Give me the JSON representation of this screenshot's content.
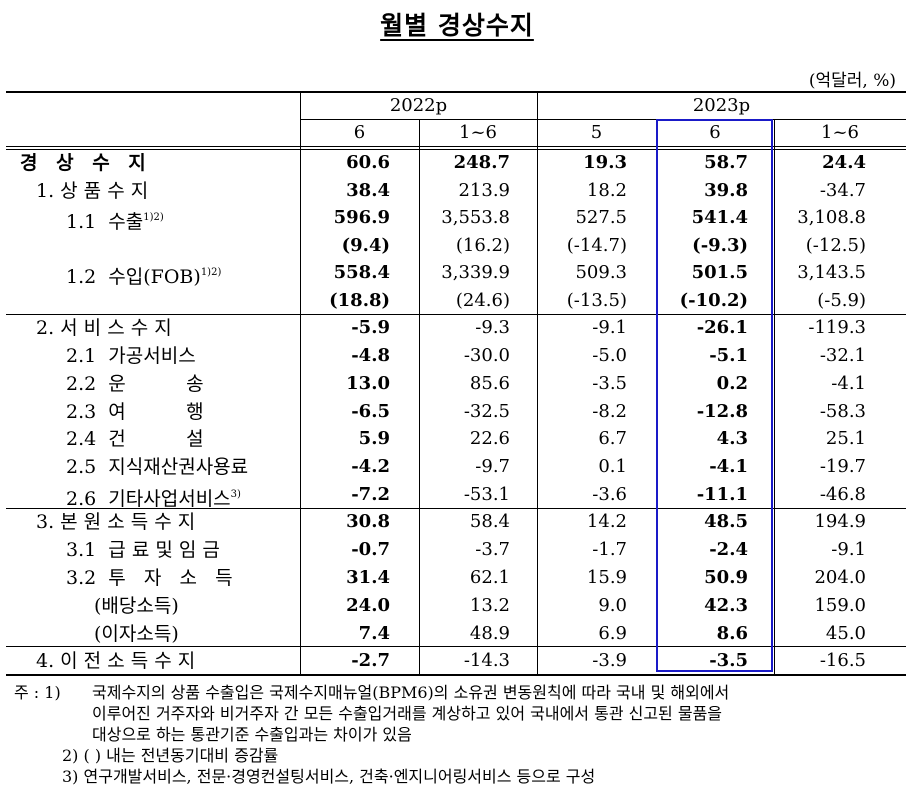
{
  "title": "월별 경상수지",
  "unit": "(억달러, %)",
  "header": {
    "year_2022": "2022p",
    "year_2023": "2023p",
    "cols": [
      "6",
      "1~6",
      "5",
      "6",
      "1~6"
    ]
  },
  "rows": [
    {
      "label": "경 상 수 지",
      "values": [
        "60.6",
        "248.7",
        "19.3",
        "58.7",
        "24.4"
      ]
    },
    {
      "label": "1. 상 품 수 지",
      "values": [
        "38.4",
        "213.9",
        "18.2",
        "39.8",
        "-34.7"
      ]
    },
    {
      "label": "1.1  수출",
      "sup": "1)2)",
      "values": [
        "596.9",
        "3,553.8",
        "527.5",
        "541.4",
        "3,108.8"
      ]
    },
    {
      "label": "",
      "values": [
        "(9.4)",
        "(16.2)",
        "(-14.7)",
        "(-9.3)",
        "(-12.5)"
      ]
    },
    {
      "label": "1.2  수입(FOB)",
      "sup": "1)2)",
      "values": [
        "558.4",
        "3,339.9",
        "509.3",
        "501.5",
        "3,143.5"
      ]
    },
    {
      "label": "",
      "values": [
        "(18.8)",
        "(24.6)",
        "(-13.5)",
        "(-10.2)",
        "(-5.9)"
      ]
    },
    {
      "label": "2. 서 비 스 수 지",
      "values": [
        "-5.9",
        "-9.3",
        "-9.1",
        "-26.1",
        "-119.3"
      ]
    },
    {
      "label": "2.1  가공서비스",
      "values": [
        "-4.8",
        "-30.0",
        "-5.0",
        "-5.1",
        "-32.1"
      ]
    },
    {
      "label": "2.2  운          송",
      "values": [
        "13.0",
        "85.6",
        "-3.5",
        "0.2",
        "-4.1"
      ]
    },
    {
      "label": "2.3  여          행",
      "values": [
        "-6.5",
        "-32.5",
        "-8.2",
        "-12.8",
        "-58.3"
      ]
    },
    {
      "label": "2.4  건          설",
      "values": [
        "5.9",
        "22.6",
        "6.7",
        "4.3",
        "25.1"
      ]
    },
    {
      "label": "2.5  지식재산권사용료",
      "values": [
        "-4.2",
        "-9.7",
        "0.1",
        "-4.1",
        "-19.7"
      ]
    },
    {
      "label": "2.6  기타사업서비스",
      "sup": "3)",
      "values": [
        "-7.2",
        "-53.1",
        "-3.6",
        "-11.1",
        "-46.8"
      ]
    },
    {
      "label": "3. 본 원 소 득 수 지",
      "values": [
        "30.8",
        "58.4",
        "14.2",
        "48.5",
        "194.9"
      ]
    },
    {
      "label": "3.1  급 료 및 임 금",
      "values": [
        "-0.7",
        "-3.7",
        "-1.7",
        "-2.4",
        "-9.1"
      ]
    },
    {
      "label": "3.2  투   자   소   득",
      "values": [
        "31.4",
        "62.1",
        "15.9",
        "50.9",
        "204.0"
      ]
    },
    {
      "label": "(배당소득)",
      "values": [
        "24.0",
        "13.2",
        "9.0",
        "42.3",
        "159.0"
      ]
    },
    {
      "label": "(이자소득)",
      "values": [
        "7.4",
        "48.9",
        "6.9",
        "8.6",
        "45.0"
      ]
    },
    {
      "label": "4. 이 전 소 득 수 지",
      "values": [
        "-2.7",
        "-14.3",
        "-3.9",
        "-3.5",
        "-16.5"
      ]
    }
  ],
  "notes": {
    "prefix": "주 : 1)",
    "n1_line1": "국제수지의 상품 수출입은 국제수지매뉴얼(BPM6)의 소유권 변동원칙에 따라 국내 및 해외에서",
    "n1_line2": "이루어진 거주자와 비거주자 간 모든 수출입거래를 계상하고 있어 국내에서 통관 신고된 물품을",
    "n1_line3": "대상으로 하는 통관기준 수출입과는 차이가 있음",
    "n2": "2) (   ) 내는 전년동기대비 증감률",
    "n3": "3) 연구개발서비스, 전문·경영컨설팅서비스, 건축·엔지니어링서비스 등으로 구성"
  }
}
